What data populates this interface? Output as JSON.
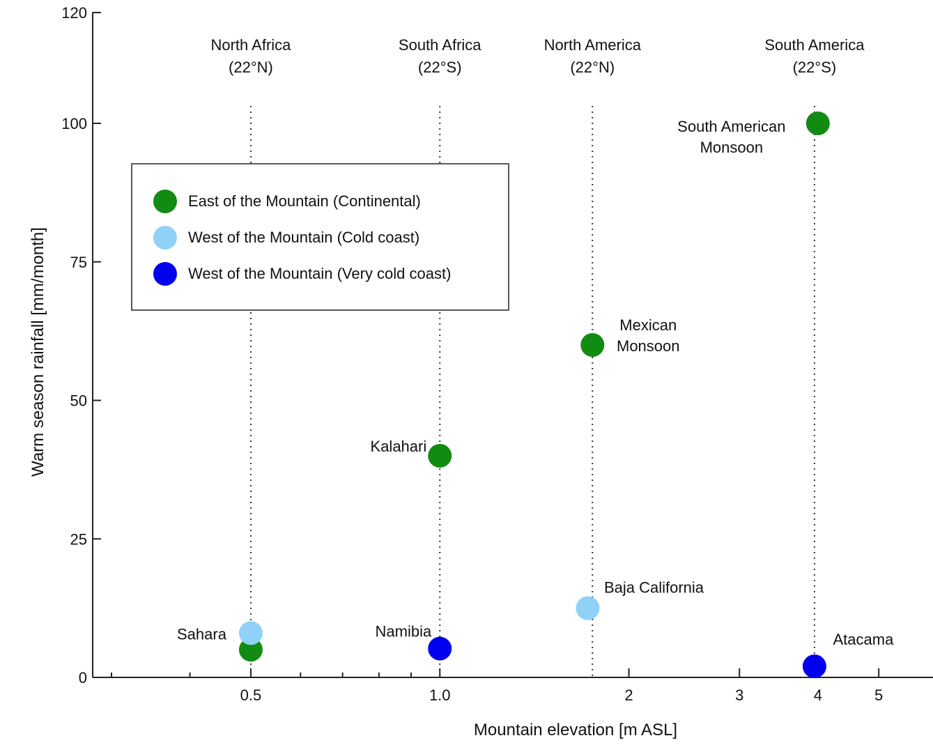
{
  "chart_data": {
    "type": "scatter",
    "x_scale": "log",
    "xlabel": "Mountain elevation [m ASL]",
    "ylabel": "Warm season rainfall [mm/month]",
    "xlim": [
      0.28,
      6.1
    ],
    "ylim": [
      0,
      120
    ],
    "x_ticks": [
      {
        "value": 0.5,
        "label": "0.5"
      },
      {
        "value": 1.0,
        "label": "1.0"
      },
      {
        "value": 2,
        "label": "2"
      },
      {
        "value": 3,
        "label": "3"
      },
      {
        "value": 4,
        "label": "4"
      },
      {
        "value": 5,
        "label": "5"
      }
    ],
    "x_minor_ticks": [
      0.3,
      0.4,
      0.6,
      0.7,
      0.8,
      0.9
    ],
    "y_ticks": [
      {
        "value": 0,
        "label": "0"
      },
      {
        "value": 25,
        "label": "25"
      },
      {
        "value": 50,
        "label": "50"
      },
      {
        "value": 75,
        "label": "75"
      },
      {
        "value": 100,
        "label": "100"
      },
      {
        "value": 120,
        "label": "120"
      }
    ],
    "grid": false,
    "legend": {
      "placement": "upper-left"
    },
    "regions": [
      {
        "name": "North Africa",
        "latitude": "(22°N)",
        "x": 0.5
      },
      {
        "name": "South Africa",
        "latitude": "(22°S)",
        "x": 1.0
      },
      {
        "name": "North America",
        "latitude": "(22°N)",
        "x": 1.75
      },
      {
        "name": "South America",
        "latitude": "(22°S)",
        "x": 3.95
      }
    ],
    "series": [
      {
        "name": "East of the Mountain   (Continental)",
        "color": "#128b12",
        "points": [
          {
            "x": 0.5,
            "y": 5,
            "label": ""
          },
          {
            "x": 1.0,
            "y": 40,
            "label": "Kalahari"
          },
          {
            "x": 1.75,
            "y": 60,
            "label": "Mexican\nMonsoon"
          },
          {
            "x": 4.0,
            "y": 100,
            "label": "South American\nMonsoon"
          }
        ]
      },
      {
        "name": "West of the Mountain (Cold coast)",
        "color": "#8fd1f7",
        "points": [
          {
            "x": 0.5,
            "y": 8,
            "label": "Sahara"
          },
          {
            "x": 1.72,
            "y": 12.5,
            "label": "Baja California"
          }
        ]
      },
      {
        "name": "West of the Mountain (Very cold coast)",
        "color": "#0000ee",
        "points": [
          {
            "x": 1.0,
            "y": 5.2,
            "label": "Namibia"
          },
          {
            "x": 3.95,
            "y": 2,
            "label": "Atacama"
          }
        ]
      }
    ]
  }
}
